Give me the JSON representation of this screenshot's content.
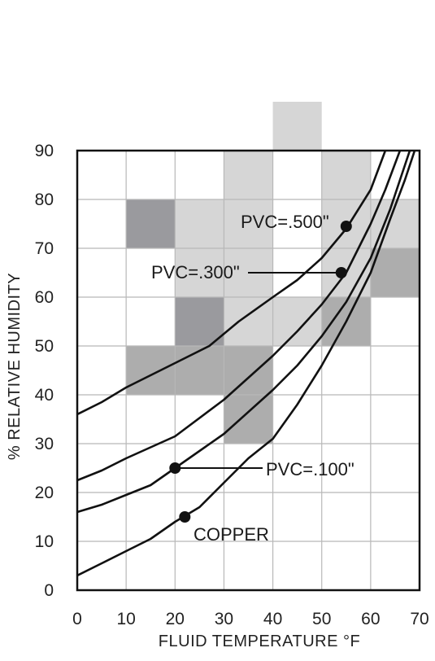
{
  "chart_data": {
    "type": "line",
    "title": "",
    "xlabel": "FLUID TEMPERATURE °F",
    "ylabel": "% RELATIVE HUMIDITY",
    "xlim": [
      0,
      70
    ],
    "ylim": [
      0,
      90
    ],
    "xticks": [
      "0",
      "10",
      "20",
      "30",
      "40",
      "50",
      "60",
      "70"
    ],
    "yticks": [
      "0",
      "10",
      "20",
      "30",
      "40",
      "50",
      "60",
      "70",
      "80",
      "90"
    ],
    "grid": true,
    "background_cells": [
      {
        "x": 10,
        "y": 80,
        "shade": "#9a9a9e"
      },
      {
        "x": 20,
        "y": 80,
        "shade": "#d6d6d6"
      },
      {
        "x": 30,
        "y": 80,
        "shade": "#d6d6d6"
      },
      {
        "x": 30,
        "y": 90,
        "shade": "#d6d6d6"
      },
      {
        "x": 40,
        "y": 100,
        "shade": "#d6d6d6"
      },
      {
        "x": 50,
        "y": 90,
        "shade": "#d6d6d6"
      },
      {
        "x": 50,
        "y": 80,
        "shade": "#d6d6d6"
      },
      {
        "x": 60,
        "y": 80,
        "shade": "#d6d6d6"
      },
      {
        "x": 20,
        "y": 70,
        "shade": "#d6d6d6"
      },
      {
        "x": 30,
        "y": 70,
        "shade": "#d6d6d6"
      },
      {
        "x": 50,
        "y": 70,
        "shade": "#d6d6d6"
      },
      {
        "x": 60,
        "y": 70,
        "shade": "#adadad"
      },
      {
        "x": 20,
        "y": 60,
        "shade": "#9a9a9e"
      },
      {
        "x": 30,
        "y": 60,
        "shade": "#d6d6d6"
      },
      {
        "x": 40,
        "y": 60,
        "shade": "#d6d6d6"
      },
      {
        "x": 50,
        "y": 60,
        "shade": "#adadad"
      },
      {
        "x": 10,
        "y": 50,
        "shade": "#adadad"
      },
      {
        "x": 20,
        "y": 50,
        "shade": "#adadad"
      },
      {
        "x": 30,
        "y": 50,
        "shade": "#adadad"
      },
      {
        "x": 30,
        "y": 40,
        "shade": "#adadad"
      }
    ],
    "series": [
      {
        "name": "PVC=.500\"",
        "color": "#111111",
        "points": [
          [
            0,
            36
          ],
          [
            5,
            38.5
          ],
          [
            10,
            41.5
          ],
          [
            20,
            46.5
          ],
          [
            27,
            50
          ],
          [
            33,
            55
          ],
          [
            40,
            60
          ],
          [
            45,
            63.5
          ],
          [
            50,
            68
          ],
          [
            55,
            74
          ],
          [
            60,
            82
          ],
          [
            63,
            90
          ]
        ]
      },
      {
        "name": "PVC=.300\"",
        "color": "#111111",
        "points": [
          [
            0,
            22.5
          ],
          [
            5,
            24.5
          ],
          [
            10,
            27
          ],
          [
            20,
            31.5
          ],
          [
            30,
            39
          ],
          [
            40,
            48
          ],
          [
            45,
            53
          ],
          [
            50,
            58.5
          ],
          [
            55,
            65
          ],
          [
            60,
            75
          ],
          [
            63,
            82
          ],
          [
            66,
            90
          ]
        ]
      },
      {
        "name": "PVC=.100\"",
        "color": "#111111",
        "points": [
          [
            0,
            16
          ],
          [
            5,
            17.5
          ],
          [
            10,
            19.5
          ],
          [
            15,
            21.5
          ],
          [
            20,
            25
          ],
          [
            30,
            32
          ],
          [
            40,
            41
          ],
          [
            45,
            46
          ],
          [
            50,
            52
          ],
          [
            55,
            59
          ],
          [
            60,
            68
          ],
          [
            64,
            78
          ],
          [
            68,
            90
          ]
        ]
      },
      {
        "name": "COPPER",
        "color": "#111111",
        "points": [
          [
            0,
            3
          ],
          [
            5,
            5.5
          ],
          [
            10,
            8
          ],
          [
            15,
            10.5
          ],
          [
            20,
            14
          ],
          [
            25,
            17
          ],
          [
            30,
            22
          ],
          [
            35,
            27
          ],
          [
            40,
            31
          ],
          [
            45,
            38
          ],
          [
            50,
            46
          ],
          [
            55,
            55
          ],
          [
            60,
            65
          ],
          [
            64,
            76
          ],
          [
            67,
            84
          ],
          [
            69,
            90
          ]
        ]
      }
    ],
    "callouts": [
      {
        "label": "PVC=.500\"",
        "dot": [
          55,
          74.5
        ],
        "text_anchor": "end"
      },
      {
        "label": "PVC=.300\"",
        "dot": [
          54,
          65
        ],
        "text_anchor": "end"
      },
      {
        "label": "PVC=.100\"",
        "dot": [
          20,
          25
        ],
        "text_anchor": "start"
      },
      {
        "label": "COPPER",
        "dot": [
          22,
          15
        ],
        "text_anchor": "start"
      }
    ]
  }
}
